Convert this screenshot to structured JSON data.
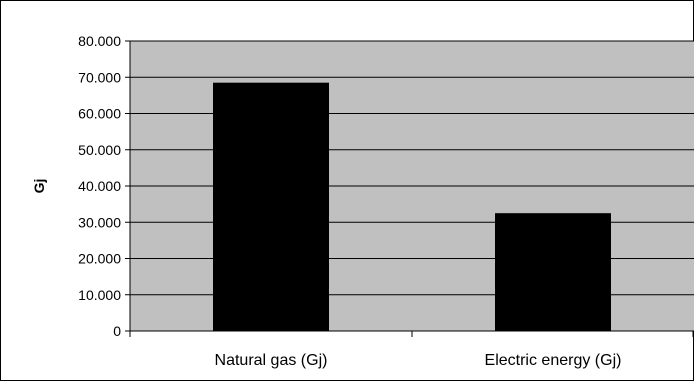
{
  "chart_data": {
    "type": "bar",
    "categories": [
      "Natural gas (Gj)",
      "Electric energy (Gj)"
    ],
    "values": [
      68500,
      32500
    ],
    "title": "",
    "xlabel": "",
    "ylabel": "Gj",
    "ylim": [
      0,
      80000
    ],
    "yticks": [
      0,
      10000,
      20000,
      30000,
      40000,
      50000,
      60000,
      70000,
      80000
    ],
    "ytick_labels": [
      "0",
      "10.000",
      "20.000",
      "30.000",
      "40.000",
      "50.000",
      "60.000",
      "70.000",
      "80.000"
    ],
    "grid": true,
    "legend": "none",
    "colors": {
      "plot_background": "#c0c0c0",
      "bar": "#000000",
      "gridline": "#000000",
      "frame": "#000000"
    }
  }
}
